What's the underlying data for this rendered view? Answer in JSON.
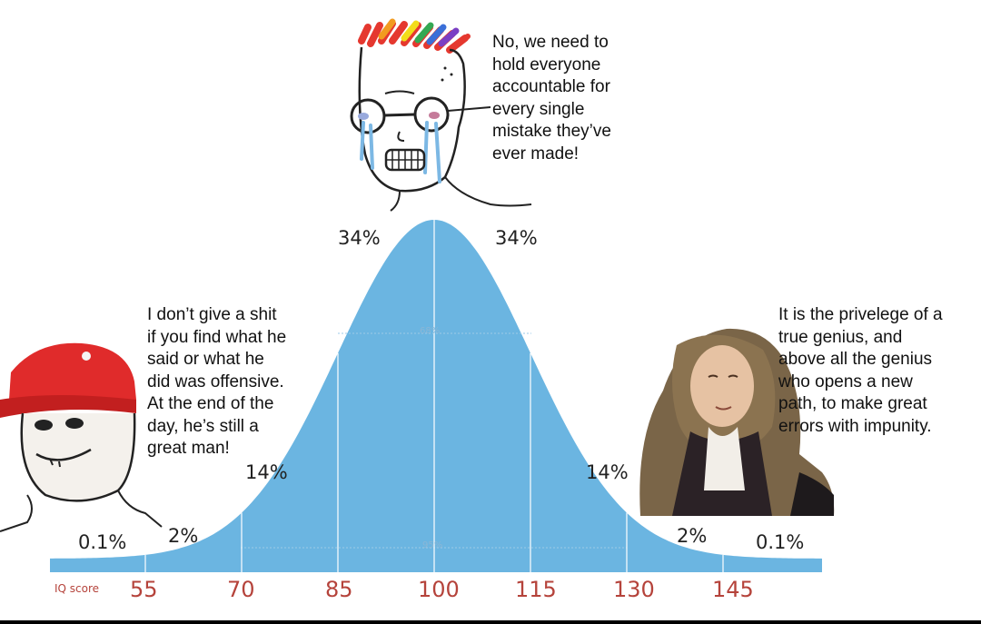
{
  "captions": {
    "left": "I don’t give a shit\nif you find what he\nsaid or what he\ndid was offensive.\nAt the end of the\nday, he’s still a\ngreat man!",
    "top": "No, we need to\nhold everyone\naccountable for\nevery single\nmistake they’ve\never made!",
    "right": "It is the privelege of a\ntrue genius, and\nabove all the genius\nwho opens a new\npath, to make great\nerrors with impunity."
  },
  "chart_data": {
    "type": "area",
    "x_title": "IQ score",
    "x_ticks": [
      "55",
      "70",
      "85",
      "100",
      "115",
      "130",
      "145"
    ],
    "region_percentages": [
      "0.1%",
      "2%",
      "14%",
      "34%",
      "34%",
      "14%",
      "2%",
      "0.1%"
    ],
    "inner_labels": [
      "68%",
      "95%"
    ],
    "fill_color": "#6bb5e1",
    "axis_label_color": "#b5433b"
  },
  "characters": [
    {
      "name": "wojak-cap",
      "description_icon": "red-cap-wojak-icon"
    },
    {
      "name": "soyjak-crying",
      "description_icon": "crying-soyjak-icon"
    },
    {
      "name": "portrait-man",
      "description_icon": "wigged-portrait-icon"
    }
  ]
}
